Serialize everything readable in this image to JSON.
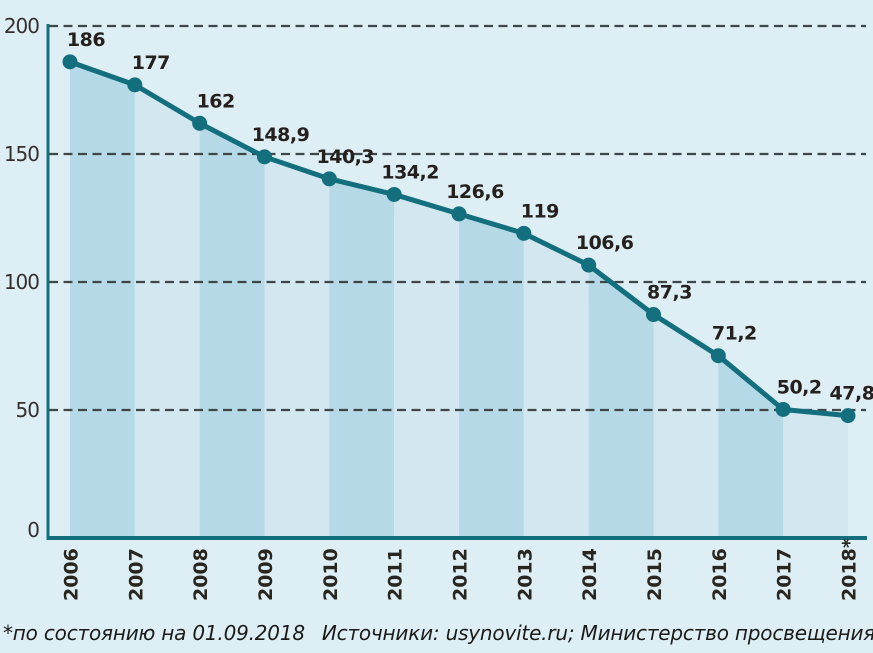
{
  "chart_data": {
    "type": "area",
    "title": "",
    "subtitle": "",
    "categories": [
      "2006",
      "2007",
      "2008",
      "2009",
      "2010",
      "2011",
      "2012",
      "2013",
      "2014",
      "2015",
      "2016",
      "2017",
      "2018*"
    ],
    "values": [
      186,
      177,
      162,
      148.9,
      140.3,
      134.2,
      126.6,
      119,
      106.6,
      87.3,
      71.2,
      50.2,
      47.8
    ],
    "value_labels": [
      "186",
      "177",
      "162",
      "148,9",
      "140,3",
      "134,2",
      "126,6",
      "119",
      "106,6",
      "87,3",
      "71,2",
      "50,2",
      "47,8"
    ],
    "xlabel": "",
    "ylabel": "",
    "ylim": [
      0,
      200
    ],
    "yticks": [
      0,
      50,
      100,
      150,
      200
    ],
    "ytick_labels": [
      "0",
      "50",
      "100",
      "150",
      "200"
    ],
    "grid": "horizontal-dashed",
    "legend": "none",
    "x_tick_rotation": -90,
    "area_style": "alternating-vertical-bands-under-line",
    "colors": {
      "background": "#ddeef5",
      "band_dark": "#b5d9e6",
      "band_light": "#d3e7f0",
      "line": "#136f7d",
      "marker": "#136f7d",
      "axis": "#136f7d",
      "grid": "#3f4648",
      "value_text": "#25201d",
      "ytick_text": "#35302d",
      "xtick_text": "#29261f",
      "footnote_text": "#1b1b19"
    }
  },
  "footnote": {
    "note": "*по состоянию на 01.09.2018",
    "sources": "Источники: usynovite.ru; Министерство просвещения РФ"
  }
}
